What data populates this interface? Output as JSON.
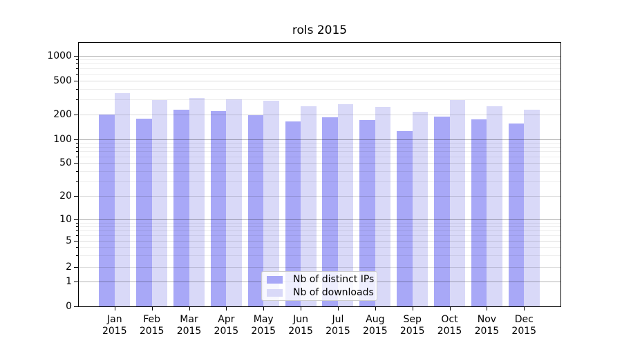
{
  "chart_data": {
    "type": "bar",
    "title": "rols 2015",
    "categories": [
      "Jan",
      "Feb",
      "Mar",
      "Apr",
      "May",
      "Jun",
      "Jul",
      "Aug",
      "Sep",
      "Oct",
      "Nov",
      "Dec"
    ],
    "x_tick_year": "2015",
    "series": [
      {
        "name": "Nb of distinct IPs",
        "color": "#a8a8f7",
        "values": [
          200,
          178,
          224,
          217,
          193,
          163,
          183,
          170,
          125,
          186,
          172,
          154
        ]
      },
      {
        "name": "Nb of downloads",
        "color": "#d9d9f8",
        "values": [
          355,
          295,
          310,
          300,
          288,
          248,
          262,
          244,
          214,
          294,
          246,
          224
        ]
      }
    ],
    "y_axis": {
      "scale": "symlog",
      "tick_values": [
        1000,
        500,
        200,
        100,
        50,
        20,
        10,
        5,
        2,
        1,
        0
      ],
      "tick_labels": [
        "1000",
        "500",
        "200",
        "100",
        "50",
        "20",
        "10",
        "5",
        "2",
        "1",
        "0"
      ],
      "minor_grid_values": [
        3,
        4,
        6,
        7,
        8,
        9,
        30,
        40,
        60,
        70,
        80,
        90,
        300,
        400,
        600,
        700,
        800,
        900
      ],
      "decade_grid_values": [
        1,
        10,
        100,
        1000
      ],
      "mid_grid_values": [
        2,
        5,
        20,
        50,
        200,
        500
      ],
      "ylim": [
        0,
        1450
      ],
      "grid": true
    },
    "legend": {
      "position": "lower center",
      "entries": [
        "Nb of distinct IPs",
        "Nb of downloads"
      ]
    }
  },
  "colors": {
    "background": "#ffffff",
    "spine": "#000000",
    "bar_dark": "#a8a8f7",
    "bar_light": "#d9d9f8",
    "grid_decade": "#ababab",
    "grid_minor": "#ededed",
    "text": "#000000"
  }
}
